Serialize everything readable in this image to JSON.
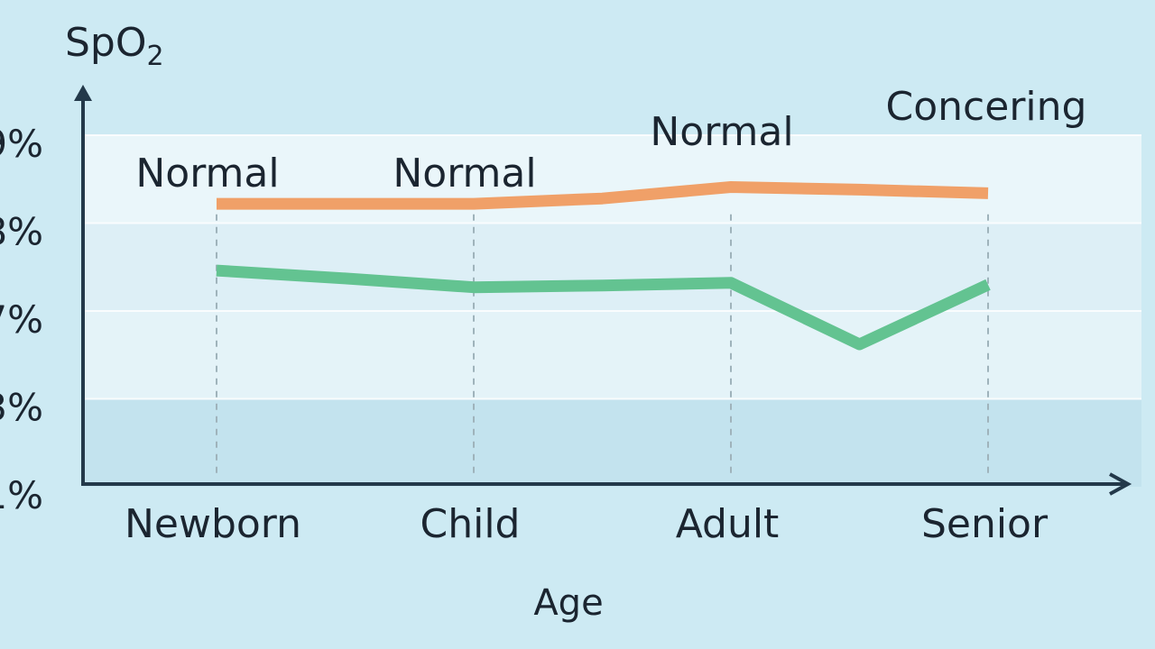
{
  "chart_data": {
    "type": "line",
    "ylabel_main": "SpO",
    "ylabel_sub": "2",
    "xlabel": "Age",
    "categories": [
      "Newborn",
      "Child",
      "Adult",
      "Senior"
    ],
    "y_tick_labels": [
      "9%",
      "8%",
      "7%",
      "3%",
      "1%"
    ],
    "bands": [
      {
        "from": 0,
        "to": 1,
        "color": "#eaf6fa"
      },
      {
        "from": 1,
        "to": 2,
        "color": "#ddeff6"
      },
      {
        "from": 2,
        "to": 3,
        "color": "#e4f3f8"
      },
      {
        "from": 3,
        "to": 4,
        "color": "#c3e3ee"
      }
    ],
    "x": [
      0,
      0.5,
      1,
      1.5,
      2,
      2.5,
      3
    ],
    "series": [
      {
        "color": "#f0a068",
        "values": [
          0.78,
          0.78,
          0.78,
          0.72,
          0.59,
          0.62,
          0.66
        ]
      },
      {
        "color": "#63c391",
        "values": [
          1.54,
          1.63,
          1.73,
          1.71,
          1.68,
          2.38,
          1.7
        ]
      }
    ],
    "annotations": [
      {
        "text": "Normal",
        "x": 0,
        "y": 0.42
      },
      {
        "text": "Normal",
        "x": 1,
        "y": 0.42
      },
      {
        "text": "Normal",
        "x": 2,
        "y": -0.05
      },
      {
        "text": "Concering",
        "x": 3,
        "y": -0.34
      }
    ]
  }
}
